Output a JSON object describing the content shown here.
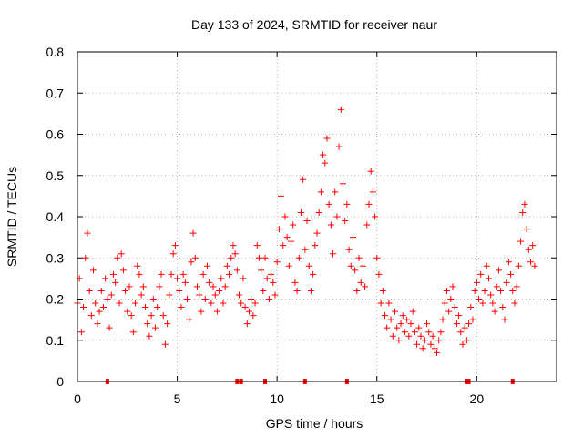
{
  "chart_data": {
    "type": "scatter",
    "title": "Day 133 of 2024, SRMTID for receiver naur",
    "xlabel": "GPS time / hours",
    "ylabel": "SRMTID / TECUs",
    "xlim": [
      0,
      24
    ],
    "ylim": [
      0,
      0.8
    ],
    "xticks": [
      0,
      5,
      10,
      15,
      20
    ],
    "xtick_labels": [
      "0",
      "5",
      "10",
      "15",
      "20"
    ],
    "yticks": [
      0,
      0.1,
      0.2,
      0.3,
      0.4,
      0.5,
      0.6,
      0.7,
      0.8
    ],
    "ytick_labels": [
      "0",
      "0.1",
      "0.2",
      "0.3",
      "0.4",
      "0.5",
      "0.6",
      "0.7",
      "0.8"
    ],
    "grid": true,
    "marker": "+",
    "color": "#ff0000",
    "series": [
      {
        "name": "SRMTID",
        "x": [
          0.0,
          0.1,
          0.2,
          0.3,
          0.4,
          0.5,
          0.6,
          0.7,
          0.8,
          0.9,
          1.0,
          1.1,
          1.2,
          1.3,
          1.4,
          1.5,
          1.6,
          1.7,
          1.8,
          1.9,
          2.0,
          2.1,
          2.2,
          2.3,
          2.4,
          2.5,
          2.6,
          2.7,
          2.8,
          2.9,
          3.0,
          3.1,
          3.2,
          3.3,
          3.4,
          3.5,
          3.6,
          3.7,
          3.8,
          3.9,
          4.0,
          4.1,
          4.2,
          4.3,
          4.4,
          4.5,
          4.6,
          4.7,
          4.8,
          4.9,
          5.0,
          5.1,
          5.2,
          5.3,
          5.4,
          5.5,
          5.6,
          5.7,
          5.8,
          5.9,
          6.0,
          6.1,
          6.2,
          6.3,
          6.4,
          6.5,
          6.6,
          6.7,
          6.8,
          6.9,
          7.0,
          7.1,
          7.2,
          7.3,
          7.4,
          7.5,
          7.6,
          7.7,
          7.8,
          7.9,
          8.0,
          8.1,
          8.2,
          8.3,
          8.4,
          8.5,
          8.6,
          8.7,
          8.8,
          8.9,
          9.0,
          9.1,
          9.2,
          9.3,
          9.4,
          9.5,
          9.6,
          9.7,
          9.8,
          9.9,
          10.0,
          10.1,
          10.2,
          10.3,
          10.4,
          10.5,
          10.6,
          10.7,
          10.8,
          10.9,
          11.0,
          11.1,
          11.2,
          11.3,
          11.4,
          11.5,
          11.6,
          11.7,
          11.8,
          11.9,
          12.0,
          12.1,
          12.2,
          12.3,
          12.4,
          12.5,
          12.6,
          12.7,
          12.8,
          12.9,
          13.0,
          13.1,
          13.2,
          13.3,
          13.4,
          13.5,
          13.6,
          13.7,
          13.8,
          13.9,
          14.0,
          14.1,
          14.2,
          14.3,
          14.4,
          14.5,
          14.6,
          14.7,
          14.8,
          14.9,
          15.0,
          15.1,
          15.2,
          15.3,
          15.4,
          15.5,
          15.6,
          15.7,
          15.8,
          15.9,
          16.0,
          16.1,
          16.2,
          16.3,
          16.4,
          16.5,
          16.6,
          16.7,
          16.8,
          16.9,
          17.0,
          17.1,
          17.2,
          17.3,
          17.4,
          17.5,
          17.6,
          17.7,
          17.8,
          17.9,
          18.0,
          18.1,
          18.2,
          18.3,
          18.4,
          18.5,
          18.6,
          18.7,
          18.8,
          18.9,
          19.0,
          19.1,
          19.2,
          19.3,
          19.4,
          19.5,
          19.6,
          19.7,
          19.8,
          19.9,
          20.0,
          20.1,
          20.2,
          20.3,
          20.4,
          20.5,
          20.6,
          20.7,
          20.8,
          20.9,
          21.0,
          21.1,
          21.2,
          21.3,
          21.4,
          21.5,
          21.6,
          21.7,
          21.8,
          21.9,
          22.0,
          22.1,
          22.2,
          22.3,
          22.4,
          22.5,
          22.6,
          22.7,
          22.8,
          22.9
        ],
        "y": [
          0.19,
          0.25,
          0.12,
          0.18,
          0.3,
          0.36,
          0.22,
          0.16,
          0.27,
          0.19,
          0.14,
          0.17,
          0.22,
          0.18,
          0.25,
          0.2,
          0.13,
          0.21,
          0.26,
          0.24,
          0.3,
          0.19,
          0.31,
          0.27,
          0.22,
          0.17,
          0.23,
          0.16,
          0.12,
          0.19,
          0.28,
          0.26,
          0.21,
          0.23,
          0.18,
          0.14,
          0.11,
          0.16,
          0.2,
          0.13,
          0.18,
          0.23,
          0.26,
          0.16,
          0.09,
          0.14,
          0.21,
          0.26,
          0.31,
          0.33,
          0.25,
          0.22,
          0.18,
          0.26,
          0.24,
          0.2,
          0.15,
          0.29,
          0.36,
          0.3,
          0.23,
          0.21,
          0.17,
          0.26,
          0.2,
          0.28,
          0.24,
          0.19,
          0.23,
          0.21,
          0.17,
          0.22,
          0.25,
          0.19,
          0.23,
          0.28,
          0.26,
          0.3,
          0.33,
          0.31,
          0.27,
          0.21,
          0.19,
          0.25,
          0.18,
          0.14,
          0.17,
          0.2,
          0.16,
          0.19,
          0.33,
          0.3,
          0.27,
          0.22,
          0.3,
          0.25,
          0.2,
          0.26,
          0.24,
          0.21,
          0.29,
          0.37,
          0.45,
          0.33,
          0.4,
          0.35,
          0.28,
          0.34,
          0.38,
          0.24,
          0.22,
          0.3,
          0.41,
          0.49,
          0.32,
          0.39,
          0.28,
          0.22,
          0.26,
          0.33,
          0.36,
          0.41,
          0.46,
          0.55,
          0.53,
          0.59,
          0.43,
          0.38,
          0.31,
          0.46,
          0.4,
          0.57,
          0.66,
          0.48,
          0.39,
          0.43,
          0.32,
          0.28,
          0.35,
          0.27,
          0.22,
          0.3,
          0.24,
          0.28,
          0.23,
          0.38,
          0.43,
          0.51,
          0.46,
          0.4,
          0.3,
          0.26,
          0.19,
          0.22,
          0.16,
          0.13,
          0.19,
          0.15,
          0.11,
          0.17,
          0.13,
          0.1,
          0.14,
          0.16,
          0.12,
          0.15,
          0.11,
          0.14,
          0.17,
          0.12,
          0.09,
          0.13,
          0.11,
          0.08,
          0.1,
          0.14,
          0.12,
          0.09,
          0.11,
          0.08,
          0.07,
          0.1,
          0.12,
          0.15,
          0.19,
          0.22,
          0.17,
          0.2,
          0.23,
          0.18,
          0.14,
          0.16,
          0.12,
          0.09,
          0.13,
          0.1,
          0.14,
          0.18,
          0.15,
          0.22,
          0.24,
          0.2,
          0.26,
          0.19,
          0.22,
          0.28,
          0.25,
          0.21,
          0.19,
          0.17,
          0.23,
          0.27,
          0.22,
          0.18,
          0.15,
          0.24,
          0.29,
          0.26,
          0.22,
          0.19,
          0.23,
          0.28,
          0.34,
          0.41,
          0.43,
          0.37,
          0.32,
          0.29,
          0.33,
          0.28
        ]
      }
    ],
    "rug_x": [
      1.5,
      8.0,
      8.2,
      9.4,
      11.4,
      13.5,
      19.5,
      19.6,
      21.8
    ]
  }
}
